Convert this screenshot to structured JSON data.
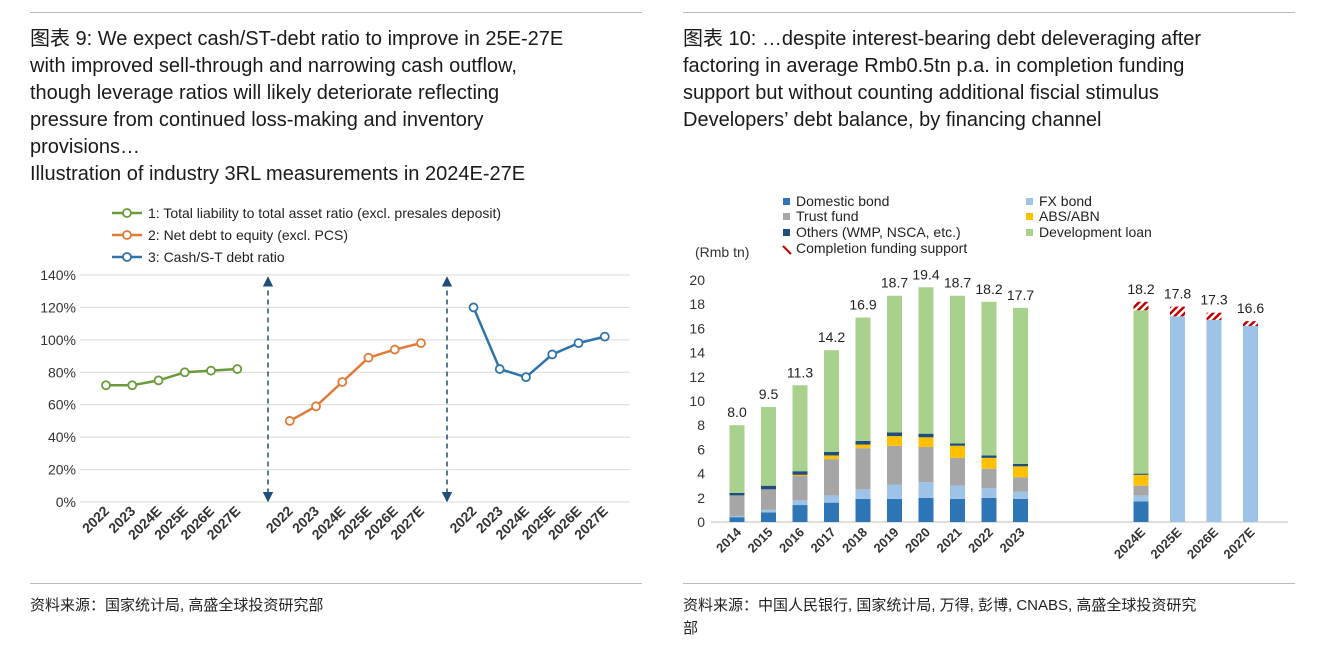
{
  "left": {
    "caption_lines": [
      "图表 9: We expect cash/ST-debt ratio to improve in 25E-27E",
      "with improved sell-through and narrowing cash outflow,",
      "though leverage ratios will likely deteriorate reflecting",
      "pressure from continued loss-making and inventory",
      "provisions…",
      "Illustration of industry 3RL measurements in 2024E-27E"
    ],
    "source": "资料来源：国家统计局, 高盛全球投资研究部",
    "colors": {
      "series1": "#6a9a3a",
      "series2": "#e07b39",
      "series3": "#2e74a8",
      "grid": "#d9d9d9",
      "arrow": "#1f4e79"
    }
  },
  "right": {
    "caption_lines": [
      "图表 10: …despite interest-bearing debt deleveraging after",
      "factoring in average Rmb0.5tn p.a. in completion funding",
      "support but without counting additional fiscial stimulus",
      "Developers’  debt balance, by financing channel"
    ],
    "source_lines": [
      "资料来源：中国人民银行, 国家统计局, 万得, 彭博, CNABS, 高盛全球投资研究",
      "部"
    ],
    "colors": {
      "Domestic bond": "#2e75b6",
      "FX bond": "#9dc3e6",
      "Trust fund": "#a6a6a6",
      "ABS/ABN": "#ffc000",
      "Others (WMP, NSCA, etc.)": "#1f4e79",
      "Development loan": "#a9d18e",
      "Completion funding support": "#c00000"
    }
  },
  "chart_data": [
    {
      "type": "line",
      "title": "Illustration of industry 3RL measurements in 2024E-27E",
      "ylim": [
        0,
        140
      ],
      "yticks": [
        "0%",
        "20%",
        "40%",
        "60%",
        "80%",
        "100%",
        "120%",
        "140%"
      ],
      "grid": true,
      "legend_position": "top",
      "groups": [
        {
          "name": "1: Total liability to total asset ratio (excl. presales deposit)",
          "x": [
            "2022",
            "2023",
            "2024E",
            "2025E",
            "2026E",
            "2027E"
          ],
          "values": [
            72,
            72,
            75,
            80,
            81,
            82
          ]
        },
        {
          "name": "2: Net debt to equity (excl. PCS)",
          "x": [
            "2022",
            "2023",
            "2024E",
            "2025E",
            "2026E",
            "2027E"
          ],
          "values": [
            50,
            59,
            74,
            89,
            94,
            98
          ]
        },
        {
          "name": "3: Cash/S-T debt ratio",
          "x": [
            "2022",
            "2023",
            "2024E",
            "2025E",
            "2026E",
            "2027E"
          ],
          "values": [
            120,
            82,
            77,
            91,
            98,
            102
          ]
        }
      ]
    },
    {
      "type": "bar",
      "stacked": true,
      "ylabel": "(Rmb tn)",
      "ylim": [
        0,
        20
      ],
      "yticks": [
        "0",
        "2",
        "4",
        "6",
        "8",
        "10",
        "12",
        "14",
        "16",
        "18",
        "20"
      ],
      "legend_position": "top",
      "categories": [
        "2014",
        "2015",
        "2016",
        "2017",
        "2018",
        "2019",
        "2020",
        "2021",
        "2022",
        "2023",
        "2024E",
        "2025E",
        "2026E",
        "2027E"
      ],
      "gap_after_index": 9,
      "totals": [
        "8.0",
        "9.5",
        "11.3",
        "14.2",
        "16.9",
        "18.7",
        "19.4",
        "18.7",
        "18.2",
        "17.7",
        "18.2",
        "17.8",
        "17.3",
        "16.6"
      ],
      "series": [
        {
          "name": "Domestic bond",
          "values": [
            0.4,
            0.8,
            1.4,
            1.6,
            1.9,
            1.9,
            2.0,
            1.9,
            2.0,
            1.9,
            1.7,
            0,
            0,
            0
          ]
        },
        {
          "name": "FX bond",
          "values": [
            0.1,
            0.2,
            0.4,
            0.6,
            0.8,
            1.2,
            1.3,
            1.1,
            0.8,
            0.6,
            0.5,
            17.0,
            16.7,
            16.2
          ]
        },
        {
          "name": "Trust fund",
          "values": [
            1.7,
            1.7,
            2.0,
            3.0,
            3.4,
            3.2,
            2.9,
            2.3,
            1.6,
            1.2,
            0.8,
            0,
            0,
            0
          ]
        },
        {
          "name": "ABS/ABN",
          "values": [
            0,
            0,
            0.1,
            0.3,
            0.3,
            0.8,
            0.8,
            1.0,
            0.9,
            0.9,
            0.9,
            0,
            0,
            0
          ]
        },
        {
          "name": "Others (WMP, NSCA, etc.)",
          "values": [
            0.2,
            0.3,
            0.3,
            0.3,
            0.3,
            0.3,
            0.3,
            0.2,
            0.2,
            0.2,
            0.1,
            0,
            0,
            0
          ]
        },
        {
          "name": "Development loan",
          "values": [
            5.6,
            6.5,
            7.1,
            8.4,
            10.2,
            11.3,
            12.1,
            12.2,
            12.7,
            12.9,
            13.5,
            0,
            0,
            0
          ]
        },
        {
          "name": "Completion funding support",
          "values": [
            0,
            0,
            0,
            0,
            0,
            0,
            0,
            0,
            0,
            0,
            0.7,
            0.8,
            0.6,
            0.4
          ]
        }
      ]
    }
  ]
}
